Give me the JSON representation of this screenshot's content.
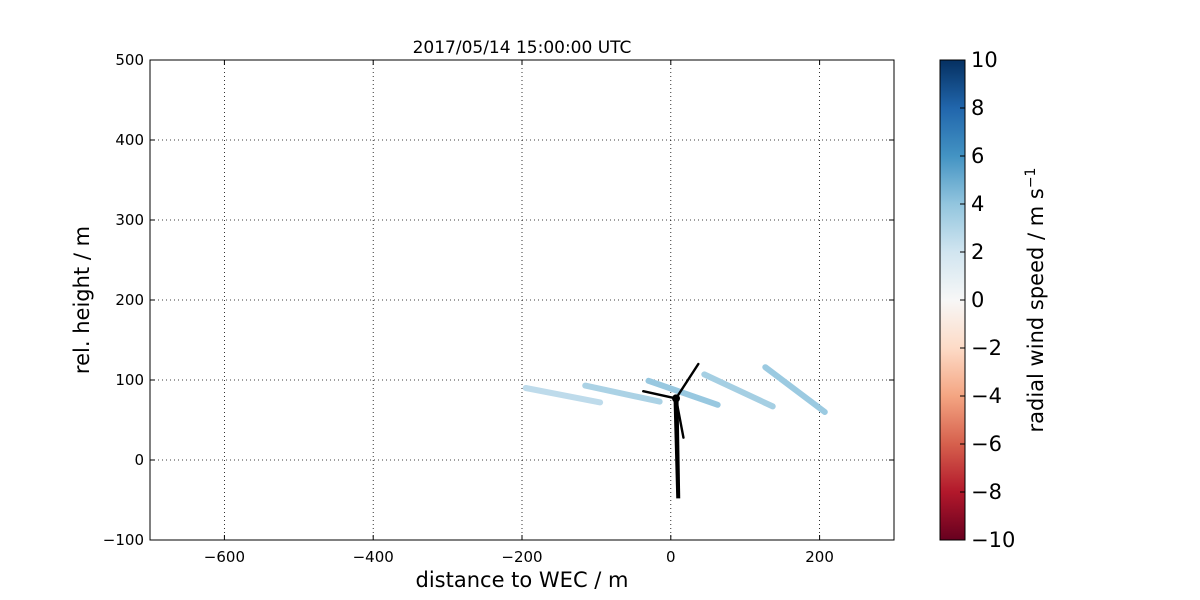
{
  "chart_data": {
    "type": "line",
    "title": "2017/05/14 15:00:00 UTC",
    "xlabel": "distance to WEC / m",
    "ylabel": "rel. height / m",
    "xlim": [
      -700,
      300
    ],
    "ylim": [
      -100,
      500
    ],
    "xticks": [
      "−600",
      "−400",
      "−200",
      "0",
      "200"
    ],
    "xtick_values": [
      -600,
      -400,
      -200,
      0,
      200
    ],
    "yticks": [
      "−100",
      "0",
      "100",
      "200",
      "300",
      "400",
      "500"
    ],
    "ytick_values": [
      -100,
      0,
      100,
      200,
      300,
      400,
      500
    ],
    "grid": true,
    "grid_style": "dotted",
    "colorbar": {
      "label": "radial wind speed / m s",
      "label_superscript": "−1",
      "range": [
        -10,
        10
      ],
      "colormap": "RdBu",
      "ticks": [
        "10",
        "8",
        "6",
        "4",
        "2",
        "0",
        "−2",
        "−4",
        "−6",
        "−8",
        "−10"
      ],
      "tick_values": [
        10,
        8,
        6,
        4,
        2,
        0,
        -2,
        -4,
        -6,
        -8,
        -10
      ]
    },
    "series": [
      {
        "x": [
          -195,
          -95
        ],
        "y": [
          90,
          72
        ],
        "radial_wind_speed": 2.6
      },
      {
        "x": [
          -115,
          -15
        ],
        "y": [
          93,
          73
        ],
        "radial_wind_speed": 3.2
      },
      {
        "x": [
          -30,
          63
        ],
        "y": [
          99,
          69
        ],
        "radial_wind_speed": 3.8
      },
      {
        "x": [
          45,
          137
        ],
        "y": [
          107,
          67
        ],
        "radial_wind_speed": 3.4
      },
      {
        "x": [
          127,
          207
        ],
        "y": [
          116,
          60
        ],
        "radial_wind_speed": 3.7
      }
    ],
    "annotations": [
      {
        "type": "wind-turbine-silhouette",
        "tower_base": [
          10,
          -48
        ],
        "hub": [
          7,
          77
        ],
        "color": "#000000"
      }
    ]
  }
}
